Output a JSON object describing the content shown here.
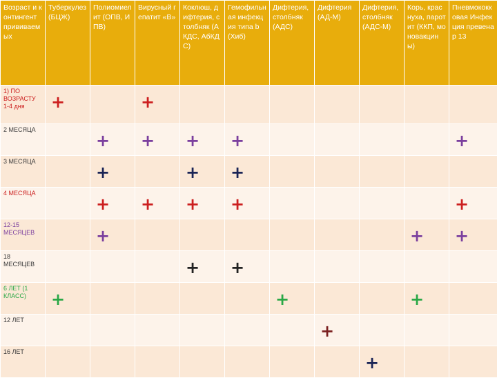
{
  "columns": [
    "Возраст и контингент прививаемых",
    "Туберкулез (БЦЖ)",
    "Полиомиелит (ОПВ, ИПВ)",
    "Вирусный гепатит «В»",
    "Коклюш, дифтерия, столбняк (АКДС, АбКДС)",
    "Гемофильная инфекция типа b (Хиб)",
    "Дифтерия, столбняк (АДС)",
    "Дифтерия (АД-М)",
    "Дифтерия, столбняк (АДС-М)",
    "Корь, краснуха, паротит (ККП, моновакцины)",
    "Пневмококковая Инфекция превенар 13"
  ],
  "colors": {
    "red": "#cc1f1f",
    "purple": "#7b3f9e",
    "navy": "#1a2456",
    "black": "#222222",
    "green": "#2aa846",
    "maroon": "#7a1f1f",
    "header_bg": "#e8ad0c",
    "row_odd": "#fbe8d6",
    "row_even": "#fdf3ea"
  },
  "rows": [
    {
      "age": "1) ПО ВОЗРАСТУ 1-4 дня",
      "age_color": "#cc1f1f",
      "marks": [
        "+",
        "",
        "+",
        "",
        "",
        "",
        "",
        "",
        "",
        ""
      ],
      "mark_color": "#cc1f1f"
    },
    {
      "age": "2 МЕСЯЦА",
      "age_color": "#3a3a3a",
      "marks": [
        "",
        "+",
        "+",
        "+",
        "+",
        "",
        "",
        "",
        "",
        "+"
      ],
      "mark_color": "#7b3f9e"
    },
    {
      "age": "3 МЕСЯЦА",
      "age_color": "#3a3a3a",
      "marks": [
        "",
        "+",
        "",
        "+",
        "+",
        "",
        "",
        "",
        "",
        ""
      ],
      "mark_color": "#1a2456"
    },
    {
      "age": "4 МЕСЯЦА",
      "age_color": "#cc1f1f",
      "marks": [
        "",
        "+",
        "+",
        "+",
        "+",
        "",
        "",
        "",
        "",
        "+"
      ],
      "mark_color": "#cc1f1f"
    },
    {
      "age": "12-15 МЕСЯЦЕВ",
      "age_color": "#7b3f9e",
      "marks": [
        "",
        "+",
        "",
        "",
        "",
        "",
        "",
        "",
        "+",
        "+"
      ],
      "mark_color": "#7b3f9e"
    },
    {
      "age": "18 МЕСЯЦЕВ",
      "age_color": "#3a3a3a",
      "marks": [
        "",
        "",
        "",
        "+",
        "+",
        "",
        "",
        "",
        "",
        ""
      ],
      "mark_color": "#222222"
    },
    {
      "age": "6 ЛЕТ (1 КЛАСС)",
      "age_color": "#2aa846",
      "marks": [
        "+",
        "",
        "",
        "",
        "",
        "+",
        "",
        "",
        "+",
        ""
      ],
      "mark_color": "#2aa846"
    },
    {
      "age": "12 ЛЕТ",
      "age_color": "#3a3a3a",
      "marks": [
        "",
        "",
        "",
        "",
        "",
        "",
        "+",
        "",
        "",
        ""
      ],
      "mark_color": "#7a1f1f"
    },
    {
      "age": "16 ЛЕТ",
      "age_color": "#3a3a3a",
      "marks": [
        "",
        "",
        "",
        "",
        "",
        "",
        "",
        "+",
        "",
        ""
      ],
      "mark_color": "#1a2456"
    }
  ]
}
